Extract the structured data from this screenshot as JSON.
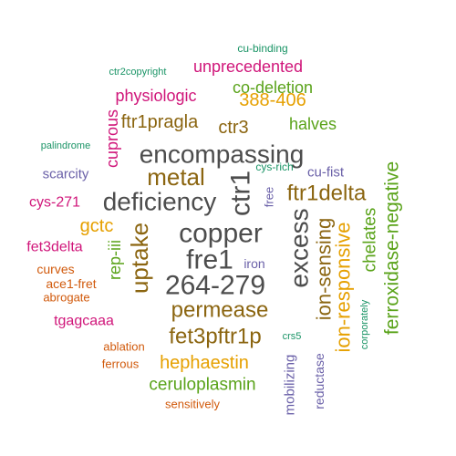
{
  "palette": {
    "dark_gray": "#4d4d4d",
    "brown": "#8b6510",
    "orange": "#e6a000",
    "green": "#5aa31a",
    "purple": "#6a60a8",
    "magenta": "#d0167a",
    "teal": "#1a9466",
    "rust": "#d15a0c"
  },
  "words": [
    {
      "text": "copper",
      "color": "dark_gray",
      "rotated": false
    },
    {
      "text": "264-279",
      "color": "dark_gray",
      "rotated": false
    },
    {
      "text": "fre1",
      "color": "dark_gray",
      "rotated": false
    },
    {
      "text": "encompassing",
      "color": "dark_gray",
      "rotated": false
    },
    {
      "text": "deficiency",
      "color": "dark_gray",
      "rotated": false
    },
    {
      "text": "ctr1",
      "color": "dark_gray",
      "rotated": true
    },
    {
      "text": "excess",
      "color": "dark_gray",
      "rotated": true
    },
    {
      "text": "uptake",
      "color": "brown",
      "rotated": true
    },
    {
      "text": "metal",
      "color": "brown",
      "rotated": false
    },
    {
      "text": "permease",
      "color": "brown",
      "rotated": false
    },
    {
      "text": "fet3pftr1p",
      "color": "brown",
      "rotated": false
    },
    {
      "text": "ftr1delta",
      "color": "brown",
      "rotated": false
    },
    {
      "text": "ion-sensing",
      "color": "brown",
      "rotated": true
    },
    {
      "text": "ftr1pragla",
      "color": "brown",
      "rotated": false
    },
    {
      "text": "ctr3",
      "color": "brown",
      "rotated": false
    },
    {
      "text": "ion-responsive",
      "color": "orange",
      "rotated": true
    },
    {
      "text": "hephaestin",
      "color": "orange",
      "rotated": false
    },
    {
      "text": "388-406",
      "color": "orange",
      "rotated": false
    },
    {
      "text": "gctc",
      "color": "orange",
      "rotated": false
    },
    {
      "text": "ferroxidase-negative",
      "color": "green",
      "rotated": true
    },
    {
      "text": "ceruloplasmin",
      "color": "green",
      "rotated": false
    },
    {
      "text": "co-deletion",
      "color": "green",
      "rotated": false
    },
    {
      "text": "halves",
      "color": "green",
      "rotated": false
    },
    {
      "text": "chelates",
      "color": "green",
      "rotated": true
    },
    {
      "text": "rep-iii",
      "color": "green",
      "rotated": true
    },
    {
      "text": "physiologic",
      "color": "magenta",
      "rotated": false
    },
    {
      "text": "unprecedented",
      "color": "magenta",
      "rotated": false
    },
    {
      "text": "cuprous",
      "color": "magenta",
      "rotated": true
    },
    {
      "text": "cys-271",
      "color": "magenta",
      "rotated": false
    },
    {
      "text": "fet3delta",
      "color": "magenta",
      "rotated": false
    },
    {
      "text": "tgagcaaa",
      "color": "magenta",
      "rotated": false
    },
    {
      "text": "scarcity",
      "color": "purple",
      "rotated": false
    },
    {
      "text": "cu-fist",
      "color": "purple",
      "rotated": false
    },
    {
      "text": "mobilizing",
      "color": "purple",
      "rotated": true
    },
    {
      "text": "reductase",
      "color": "purple",
      "rotated": true
    },
    {
      "text": "iron",
      "color": "purple",
      "rotated": false
    },
    {
      "text": "free",
      "color": "purple",
      "rotated": true
    },
    {
      "text": "cys-rich",
      "color": "teal",
      "rotated": false
    },
    {
      "text": "cu-binding",
      "color": "teal",
      "rotated": false
    },
    {
      "text": "ctr2copyright",
      "color": "teal",
      "rotated": false
    },
    {
      "text": "palindrome",
      "color": "teal",
      "rotated": false
    },
    {
      "text": "corporately",
      "color": "teal",
      "rotated": true
    },
    {
      "text": "crs5",
      "color": "teal",
      "rotated": false
    },
    {
      "text": "curves",
      "color": "rust",
      "rotated": false
    },
    {
      "text": "ace1-fret",
      "color": "rust",
      "rotated": false
    },
    {
      "text": "abrogate",
      "color": "rust",
      "rotated": false
    },
    {
      "text": "ablation",
      "color": "rust",
      "rotated": false
    },
    {
      "text": "ferrous",
      "color": "rust",
      "rotated": false
    },
    {
      "text": "sensitively",
      "color": "rust",
      "rotated": false
    }
  ]
}
